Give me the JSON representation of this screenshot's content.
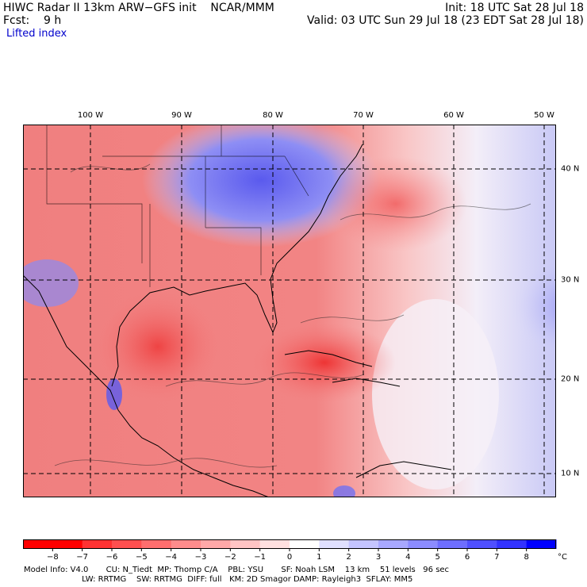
{
  "header": {
    "line1_left": "HIWC Radar II 13km ARW−GFS init    NCAR/MMM",
    "line1_right": "Init: 18 UTC Sat 28 Jul 18",
    "line2_left": "Fcst:    9 h",
    "line2_right": "Valid: 03 UTC Sun 29 Jul 18 (23 EDT Sat 28 Jul 18)",
    "field": "Lifted index"
  },
  "map": {
    "lon_labels": [
      "100 W",
      "90 W",
      "80 W",
      "70 W",
      "60 W",
      "50 W"
    ],
    "lat_labels": [
      "40 N",
      "30 N",
      "20 N",
      "10 N"
    ],
    "colors": {
      "warm": "#ee3a3a",
      "cool": "#4b4bf0",
      "neutral": "#fbe7e7"
    }
  },
  "legend": {
    "ticks": [
      "−8",
      "−7",
      "−6",
      "−5",
      "−4",
      "−3",
      "−2",
      "−1",
      "0",
      "1",
      "2",
      "3",
      "4",
      "5",
      "6",
      "7",
      "8"
    ],
    "unit": "°C",
    "colors": [
      "#ff0000",
      "#ff3232",
      "#ff5050",
      "#ff6e6e",
      "#ff8c8c",
      "#ffa8a8",
      "#ffc4c4",
      "#ffe0e0",
      "#ffffff",
      "#e0e0ff",
      "#c4c4ff",
      "#a8a8ff",
      "#8c8cff",
      "#6e6eff",
      "#5050ff",
      "#3232ff",
      "#0000ff"
    ]
  },
  "footer": {
    "line1": "Model Info: V4.0       CU: N_Tiedt  MP: Thomp C/A    PBL: YSU       SF: Noah LSM    13 km    51 levels   96 sec",
    "line2": "                       LW: RRTMG    SW: RRTMG  DIFF: full   KM: 2D Smagor DAMP: Rayleigh3  SFLAY: MM5"
  }
}
